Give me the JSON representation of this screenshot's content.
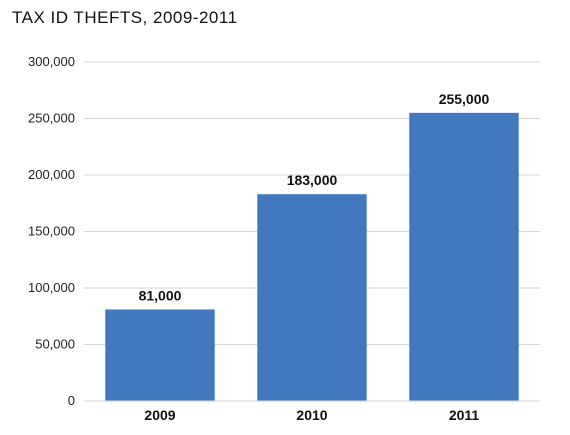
{
  "chart_data": {
    "type": "bar",
    "title": "TAX ID THEFTS, 2009-2011",
    "xlabel": "",
    "ylabel": "",
    "categories": [
      "2009",
      "2010",
      "2011"
    ],
    "values": [
      81000,
      183000,
      255000
    ],
    "data_labels": [
      "81,000",
      "183,000",
      "255,000"
    ],
    "ylim": [
      0,
      300000
    ],
    "yticks": [
      0,
      50000,
      100000,
      150000,
      200000,
      250000,
      300000
    ],
    "ytick_labels": [
      "0",
      "50,000",
      "100,000",
      "150,000",
      "200,000",
      "250,000",
      "300,000"
    ],
    "grid": true,
    "bar_color": "#4178BE",
    "grid_color": "#d6d6d6"
  }
}
